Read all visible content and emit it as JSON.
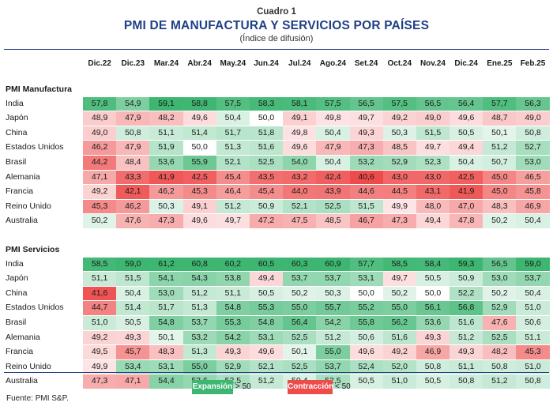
{
  "header": {
    "cuadro": "Cuadro 1",
    "title": "PMI DE MANUFACTURA Y SERVICIOS POR PAÍSES",
    "subtitle": "(Índice de difusión)"
  },
  "columns": [
    "Dic.22",
    "Dic.23",
    "Mar.24",
    "Abr.24",
    "May.24",
    "Jun.24",
    "Jul.24",
    "Ago.24",
    "Set.24",
    "Oct.24",
    "Nov.24",
    "Dic.24",
    "Ene.25",
    "Feb.25"
  ],
  "colors": {
    "expansion": "#3cb670",
    "contraction": "#ee4b4b",
    "title": "#1f3f86"
  },
  "threshold": 50,
  "sections": [
    {
      "label": "PMI Manufactura",
      "rows": [
        {
          "name": "India",
          "values": [
            "57,8",
            "54,9",
            "59,1",
            "58,8",
            "57,5",
            "58,3",
            "58,1",
            "57,5",
            "56,5",
            "57,5",
            "56,5",
            "56,4",
            "57,7",
            "56,3"
          ]
        },
        {
          "name": "Japón",
          "values": [
            "48,9",
            "47,9",
            "48,2",
            "49,6",
            "50,4",
            "50,0",
            "49,1",
            "49,8",
            "49,7",
            "49,2",
            "49,0",
            "49,6",
            "48,7",
            "49,0"
          ]
        },
        {
          "name": "China",
          "values": [
            "49,0",
            "50,8",
            "51,1",
            "51,4",
            "51,7",
            "51,8",
            "49,8",
            "50,4",
            "49,3",
            "50,3",
            "51,5",
            "50,5",
            "50,1",
            "50,8"
          ]
        },
        {
          "name": "Estados Unidos",
          "values": [
            "46,2",
            "47,9",
            "51,9",
            "50,0",
            "51,3",
            "51,6",
            "49,6",
            "47,9",
            "47,3",
            "48,5",
            "49,7",
            "49,4",
            "51,2",
            "52,7"
          ]
        },
        {
          "name": "Brasil",
          "values": [
            "44,2",
            "48,4",
            "53,6",
            "55,9",
            "52,1",
            "52,5",
            "54,0",
            "50,4",
            "53,2",
            "52,9",
            "52,3",
            "50,4",
            "50,7",
            "53,0"
          ]
        },
        {
          "name": "Alemania",
          "values": [
            "47,1",
            "43,3",
            "41,9",
            "42,5",
            "45,4",
            "43,5",
            "43,2",
            "42,4",
            "40,6",
            "43,0",
            "43,0",
            "42,5",
            "45,0",
            "46,5"
          ]
        },
        {
          "name": "Francia",
          "values": [
            "49,2",
            "42,1",
            "46,2",
            "45,3",
            "46,4",
            "45,4",
            "44,0",
            "43,9",
            "44,6",
            "44,5",
            "43,1",
            "41,9",
            "45,0",
            "45,8"
          ]
        },
        {
          "name": "Reino Unido",
          "values": [
            "45,3",
            "46,2",
            "50,3",
            "49,1",
            "51,2",
            "50,9",
            "52,1",
            "52,5",
            "51,5",
            "49,9",
            "48,0",
            "47,0",
            "48,3",
            "46,9"
          ]
        },
        {
          "name": "Australia",
          "values": [
            "50,2",
            "47,6",
            "47,3",
            "49,6",
            "49,7",
            "47,2",
            "47,5",
            "48,5",
            "46,7",
            "47,3",
            "49,4",
            "47,8",
            "50,2",
            "50,4"
          ]
        }
      ]
    },
    {
      "label": "PMI Servicios",
      "rows": [
        {
          "name": "India",
          "values": [
            "58,5",
            "59,0",
            "61,2",
            "60,8",
            "60,2",
            "60,5",
            "60,3",
            "60,9",
            "57,7",
            "58,5",
            "58,4",
            "59,3",
            "56,5",
            "59,0"
          ]
        },
        {
          "name": "Japón",
          "values": [
            "51,1",
            "51,5",
            "54,1",
            "54,3",
            "53,8",
            "49,4",
            "53,7",
            "53,7",
            "53,1",
            "49,7",
            "50,5",
            "50,9",
            "53,0",
            "53,7"
          ]
        },
        {
          "name": "China",
          "values": [
            "41,6",
            "50,4",
            "53,0",
            "51,2",
            "51,1",
            "50,5",
            "50,2",
            "50,3",
            "50,0",
            "50,2",
            "50,0",
            "52,2",
            "50,2",
            "50,4"
          ]
        },
        {
          "name": "Estados Unidos",
          "values": [
            "44,7",
            "51,4",
            "51,7",
            "51,3",
            "54,8",
            "55,3",
            "55,0",
            "55,7",
            "55,2",
            "55,0",
            "56,1",
            "56,8",
            "52,9",
            "51,0"
          ]
        },
        {
          "name": "Brasil",
          "values": [
            "51,0",
            "50,5",
            "54,8",
            "53,7",
            "55,3",
            "54,8",
            "56,4",
            "54,2",
            "55,8",
            "56,2",
            "53,6",
            "51,6",
            "47,6",
            "50,6"
          ]
        },
        {
          "name": "Alemania",
          "values": [
            "49,2",
            "49,3",
            "50,1",
            "53,2",
            "54,2",
            "53,1",
            "52,5",
            "51,2",
            "50,6",
            "51,6",
            "49,3",
            "51,2",
            "52,5",
            "51,1"
          ]
        },
        {
          "name": "Francia",
          "values": [
            "49,5",
            "45,7",
            "48,3",
            "51,3",
            "49,3",
            "49,6",
            "50,1",
            "55,0",
            "49,6",
            "49,2",
            "46,9",
            "49,3",
            "48,2",
            "45,3"
          ]
        },
        {
          "name": "Reino Unido",
          "values": [
            "49,9",
            "53,4",
            "53,1",
            "55,0",
            "52,9",
            "52,1",
            "52,5",
            "53,7",
            "52,4",
            "52,0",
            "50,8",
            "51,1",
            "50,8",
            "51,0"
          ]
        },
        {
          "name": "Australia",
          "values": [
            "47,3",
            "47,1",
            "54,4",
            "53,6",
            "52,5",
            "51,2",
            "50,4",
            "52,5",
            "50,5",
            "51,0",
            "50,5",
            "50,8",
            "51,2",
            "50,8"
          ]
        }
      ]
    }
  ],
  "legend": {
    "expansion_label": "Expansión",
    "expansion_text": "> 50",
    "contraction_label": "Contracción",
    "contraction_text": "< 50"
  },
  "footer": {
    "source": "Fuente: PMI S&P."
  }
}
